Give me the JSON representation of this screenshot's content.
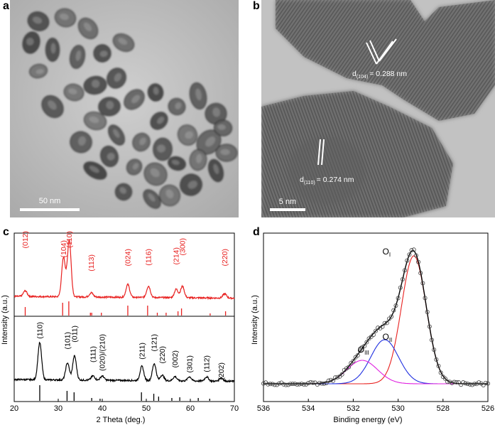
{
  "panels": {
    "a": {
      "letter": "a",
      "scale_bar": "50 nm"
    },
    "b": {
      "letter": "b",
      "scale_bar": "5 nm",
      "spacing_1": {
        "sym": "d",
        "sub": "(104)",
        "value": "= 0.288 nm"
      },
      "spacing_2": {
        "sym": "d",
        "sub": "(110)",
        "value": "= 0.274 nm"
      }
    },
    "c": {
      "letter": "c"
    },
    "d": {
      "letter": "d"
    }
  },
  "chart_data": [
    {
      "type": "line",
      "panel": "c",
      "xlabel": "2 Theta (deg.)",
      "ylabel": "Intensity (a.u.)",
      "xlim": [
        20,
        70
      ],
      "xticks": [
        20,
        30,
        40,
        50,
        60,
        70
      ],
      "series": [
        {
          "color": "#e8201f",
          "peaks": [
            {
              "x": 22.5,
              "label": "(012)"
            },
            {
              "x": 31.2,
              "label": "(104)"
            },
            {
              "x": 32.5,
              "label": "(110)"
            },
            {
              "x": 37.5,
              "label": "(113)"
            },
            {
              "x": 45.8,
              "label": "(024)"
            },
            {
              "x": 50.5,
              "label": "(116)"
            },
            {
              "x": 56.8,
              "label": "(214)"
            },
            {
              "x": 58.2,
              "label": "(300)"
            },
            {
              "x": 67.8,
              "label": "(220)"
            }
          ],
          "reference_lines": [
            22.5,
            31.0,
            32.4,
            37.3,
            37.6,
            39.8,
            45.8,
            50.3,
            52.5,
            54.5,
            57.2,
            58.0,
            64.5,
            68.0
          ]
        },
        {
          "color": "#000000",
          "peaks": [
            {
              "x": 25.8,
              "label": "(110)"
            },
            {
              "x": 32.1,
              "label": "(101)"
            },
            {
              "x": 33.7,
              "label": "(011)"
            },
            {
              "x": 37.9,
              "label": "(111)"
            },
            {
              "x": 40.0,
              "label": "(020)/(210)"
            },
            {
              "x": 49.0,
              "label": "(211)"
            },
            {
              "x": 51.8,
              "label": "(121)"
            },
            {
              "x": 53.6,
              "label": "(220)"
            },
            {
              "x": 56.5,
              "label": "(002)"
            },
            {
              "x": 59.8,
              "label": "(301)"
            },
            {
              "x": 63.7,
              "label": "(112)"
            },
            {
              "x": 67.0,
              "label": "(202)"
            }
          ],
          "reference_lines": [
            25.8,
            32.0,
            33.6,
            37.6,
            39.5,
            48.9,
            51.7,
            52.8,
            55.8,
            57.6,
            61.8,
            64.4
          ]
        }
      ]
    },
    {
      "type": "line",
      "panel": "d",
      "xlabel": "Binding energy (eV)",
      "ylabel": "Intensity (a.u.)",
      "xlim": [
        536,
        526
      ],
      "xticks": [
        536,
        534,
        532,
        530,
        528,
        526
      ],
      "components": [
        {
          "sym": "O",
          "sub": "I",
          "center_ev": 529.3,
          "color": "#e8201f"
        },
        {
          "sym": "O",
          "sub": "II",
          "center_ev": 530.6,
          "color": "#2030e0"
        },
        {
          "sym": "O",
          "sub": "III",
          "center_ev": 531.6,
          "color": "#e020e0"
        }
      ]
    }
  ]
}
